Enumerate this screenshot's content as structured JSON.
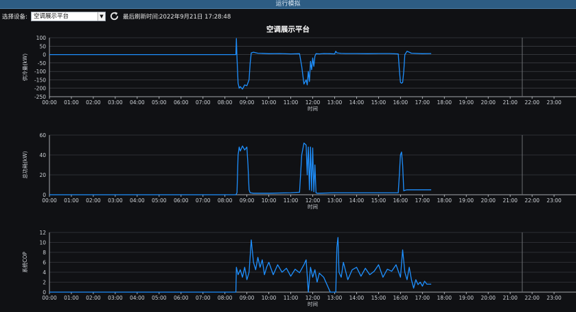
{
  "window": {
    "title": "运行模拟"
  },
  "toolbar": {
    "device_label": "选择设备:",
    "device_value": "空调展示平台",
    "refresh_icon": "refresh-icon",
    "last_refresh_label": "最后刷新时间:",
    "last_refresh_value": "2022年9月21日 17:28:48"
  },
  "colors": {
    "series": "#1e90ff",
    "grid": "#4a4d52",
    "axis": "#cfd3d8",
    "now_line": "#6b6e72"
  },
  "chart_title": "空调展示平台",
  "chart_data": [
    {
      "type": "line",
      "title": "",
      "ylabel": "供冷量(kW)",
      "xlabel": "时间",
      "ylim": [
        -250,
        100
      ],
      "yticks": [
        100,
        50,
        0,
        -50,
        -100,
        -150,
        -200,
        -250
      ],
      "grid": true,
      "x_categories": [
        "00:00",
        "01:00",
        "02:00",
        "03:00",
        "04:00",
        "05:00",
        "06:00",
        "07:00",
        "08:00",
        "09:00",
        "10:00",
        "11:00",
        "12:00",
        "13:00",
        "14:00",
        "15:00",
        "16:00",
        "17:00",
        "18:00",
        "19:00",
        "20:00",
        "21:00",
        "22:00",
        "23:00"
      ],
      "now_marker": 21.55,
      "series": [
        {
          "x": [
            0,
            8.5,
            8.52,
            8.55,
            8.6,
            8.65,
            8.7,
            8.8,
            8.9,
            9.0,
            9.1,
            9.15,
            9.2,
            9.3,
            9.5,
            10,
            10.5,
            11,
            11.4,
            11.5,
            11.6,
            11.7,
            11.75,
            11.8,
            11.85,
            11.9,
            11.95,
            12.0,
            12.05,
            12.1,
            12.15,
            12.3,
            12.5,
            12.8,
            13.0,
            13.05,
            13.1,
            13.3,
            13.5,
            14,
            14.5,
            15,
            15.5,
            15.9,
            15.95,
            16.0,
            16.05,
            16.1,
            16.15,
            16.2,
            16.3,
            16.5,
            17,
            17.4
          ],
          "y": [
            0,
            0,
            95,
            -20,
            -170,
            -200,
            -190,
            -205,
            -180,
            -185,
            -150,
            -50,
            10,
            14,
            8,
            5,
            6,
            4,
            5,
            -70,
            -175,
            -150,
            -180,
            -100,
            -160,
            -40,
            -90,
            -20,
            -70,
            -10,
            5,
            4,
            6,
            5,
            4,
            20,
            10,
            7,
            6,
            6,
            5,
            6,
            6,
            4,
            -90,
            -165,
            -170,
            -165,
            -100,
            0,
            20,
            8,
            5,
            6
          ]
        }
      ]
    },
    {
      "type": "line",
      "title": "",
      "ylabel": "总功耗(kW)",
      "xlabel": "时间",
      "ylim": [
        0,
        60
      ],
      "yticks": [
        60,
        40,
        20,
        0
      ],
      "grid": true,
      "x_categories": [
        "00:00",
        "01:00",
        "02:00",
        "03:00",
        "04:00",
        "05:00",
        "06:00",
        "07:00",
        "08:00",
        "09:00",
        "10:00",
        "11:00",
        "12:00",
        "13:00",
        "14:00",
        "15:00",
        "16:00",
        "17:00",
        "18:00",
        "19:00",
        "20:00",
        "21:00",
        "22:00",
        "23:00"
      ],
      "now_marker": 21.55,
      "series": [
        {
          "x": [
            0,
            8.5,
            8.55,
            8.6,
            8.65,
            8.7,
            8.8,
            8.9,
            9.0,
            9.05,
            9.1,
            9.15,
            9.3,
            10,
            11,
            11.4,
            11.5,
            11.6,
            11.7,
            11.75,
            11.8,
            11.85,
            11.9,
            11.95,
            12.0,
            12.05,
            12.1,
            12.15,
            12.2,
            12.3,
            13,
            14,
            15,
            15.9,
            15.95,
            16.0,
            16.05,
            16.1,
            16.15,
            16.2,
            16.3,
            17.4
          ],
          "y": [
            0,
            0,
            2,
            40,
            48,
            44,
            49,
            45,
            48,
            30,
            5,
            2,
            1.5,
            1.5,
            2,
            2.5,
            40,
            52,
            50,
            20,
            48,
            5,
            48,
            4,
            47,
            3,
            30,
            2,
            1.5,
            1.5,
            2,
            2,
            2,
            2,
            20,
            40,
            43,
            30,
            4,
            4.5,
            5,
            5
          ]
        }
      ]
    },
    {
      "type": "line",
      "title": "",
      "ylabel": "系统COP",
      "xlabel": "时间",
      "ylim": [
        0,
        12
      ],
      "yticks": [
        12,
        10,
        8,
        6,
        4,
        2,
        0
      ],
      "grid": true,
      "x_categories": [
        "00:00",
        "01:00",
        "02:00",
        "03:00",
        "04:00",
        "05:00",
        "06:00",
        "07:00",
        "08:00",
        "09:00",
        "10:00",
        "11:00",
        "12:00",
        "13:00",
        "14:00",
        "15:00",
        "16:00",
        "17:00",
        "18:00",
        "19:00",
        "20:00",
        "21:00",
        "22:00",
        "23:00"
      ],
      "now_marker": 21.55,
      "series": [
        {
          "x": [
            0,
            8.5,
            8.52,
            8.6,
            8.7,
            8.8,
            8.9,
            9.0,
            9.1,
            9.2,
            9.3,
            9.4,
            9.5,
            9.6,
            9.7,
            9.8,
            9.9,
            10.0,
            10.2,
            10.4,
            10.6,
            10.8,
            11.0,
            11.2,
            11.4,
            11.6,
            11.7,
            11.8,
            11.9,
            12.0,
            12.1,
            12.2,
            12.3,
            12.5,
            12.8,
            13.0,
            13.05,
            13.1,
            13.15,
            13.2,
            13.3,
            13.4,
            13.6,
            13.8,
            14.0,
            14.2,
            14.4,
            14.6,
            14.8,
            15.0,
            15.2,
            15.4,
            15.6,
            15.8,
            16.0,
            16.1,
            16.2,
            16.3,
            16.4,
            16.5,
            16.6,
            16.7,
            16.8,
            16.9,
            17.0,
            17.1,
            17.2,
            17.4
          ],
          "y": [
            0,
            0,
            5,
            3.5,
            4.5,
            3,
            5,
            2.5,
            4,
            10.5,
            6,
            4.5,
            7,
            5,
            6.5,
            3.5,
            5,
            6,
            3.5,
            5.5,
            4,
            4.8,
            3.2,
            4.6,
            3.9,
            5.5,
            6.5,
            0,
            5,
            3,
            4.5,
            2,
            3.8,
            3,
            0,
            0,
            0,
            9,
            11,
            4,
            3,
            6,
            2.5,
            4.5,
            5,
            3.2,
            4.8,
            3.5,
            4.2,
            5.5,
            3,
            4.6,
            4.2,
            5.5,
            3,
            8.5,
            4,
            2.5,
            5,
            2.5,
            0.8,
            2.5,
            1.5,
            2,
            1.2,
            2.2,
            1.6,
            1.6
          ]
        }
      ]
    }
  ]
}
